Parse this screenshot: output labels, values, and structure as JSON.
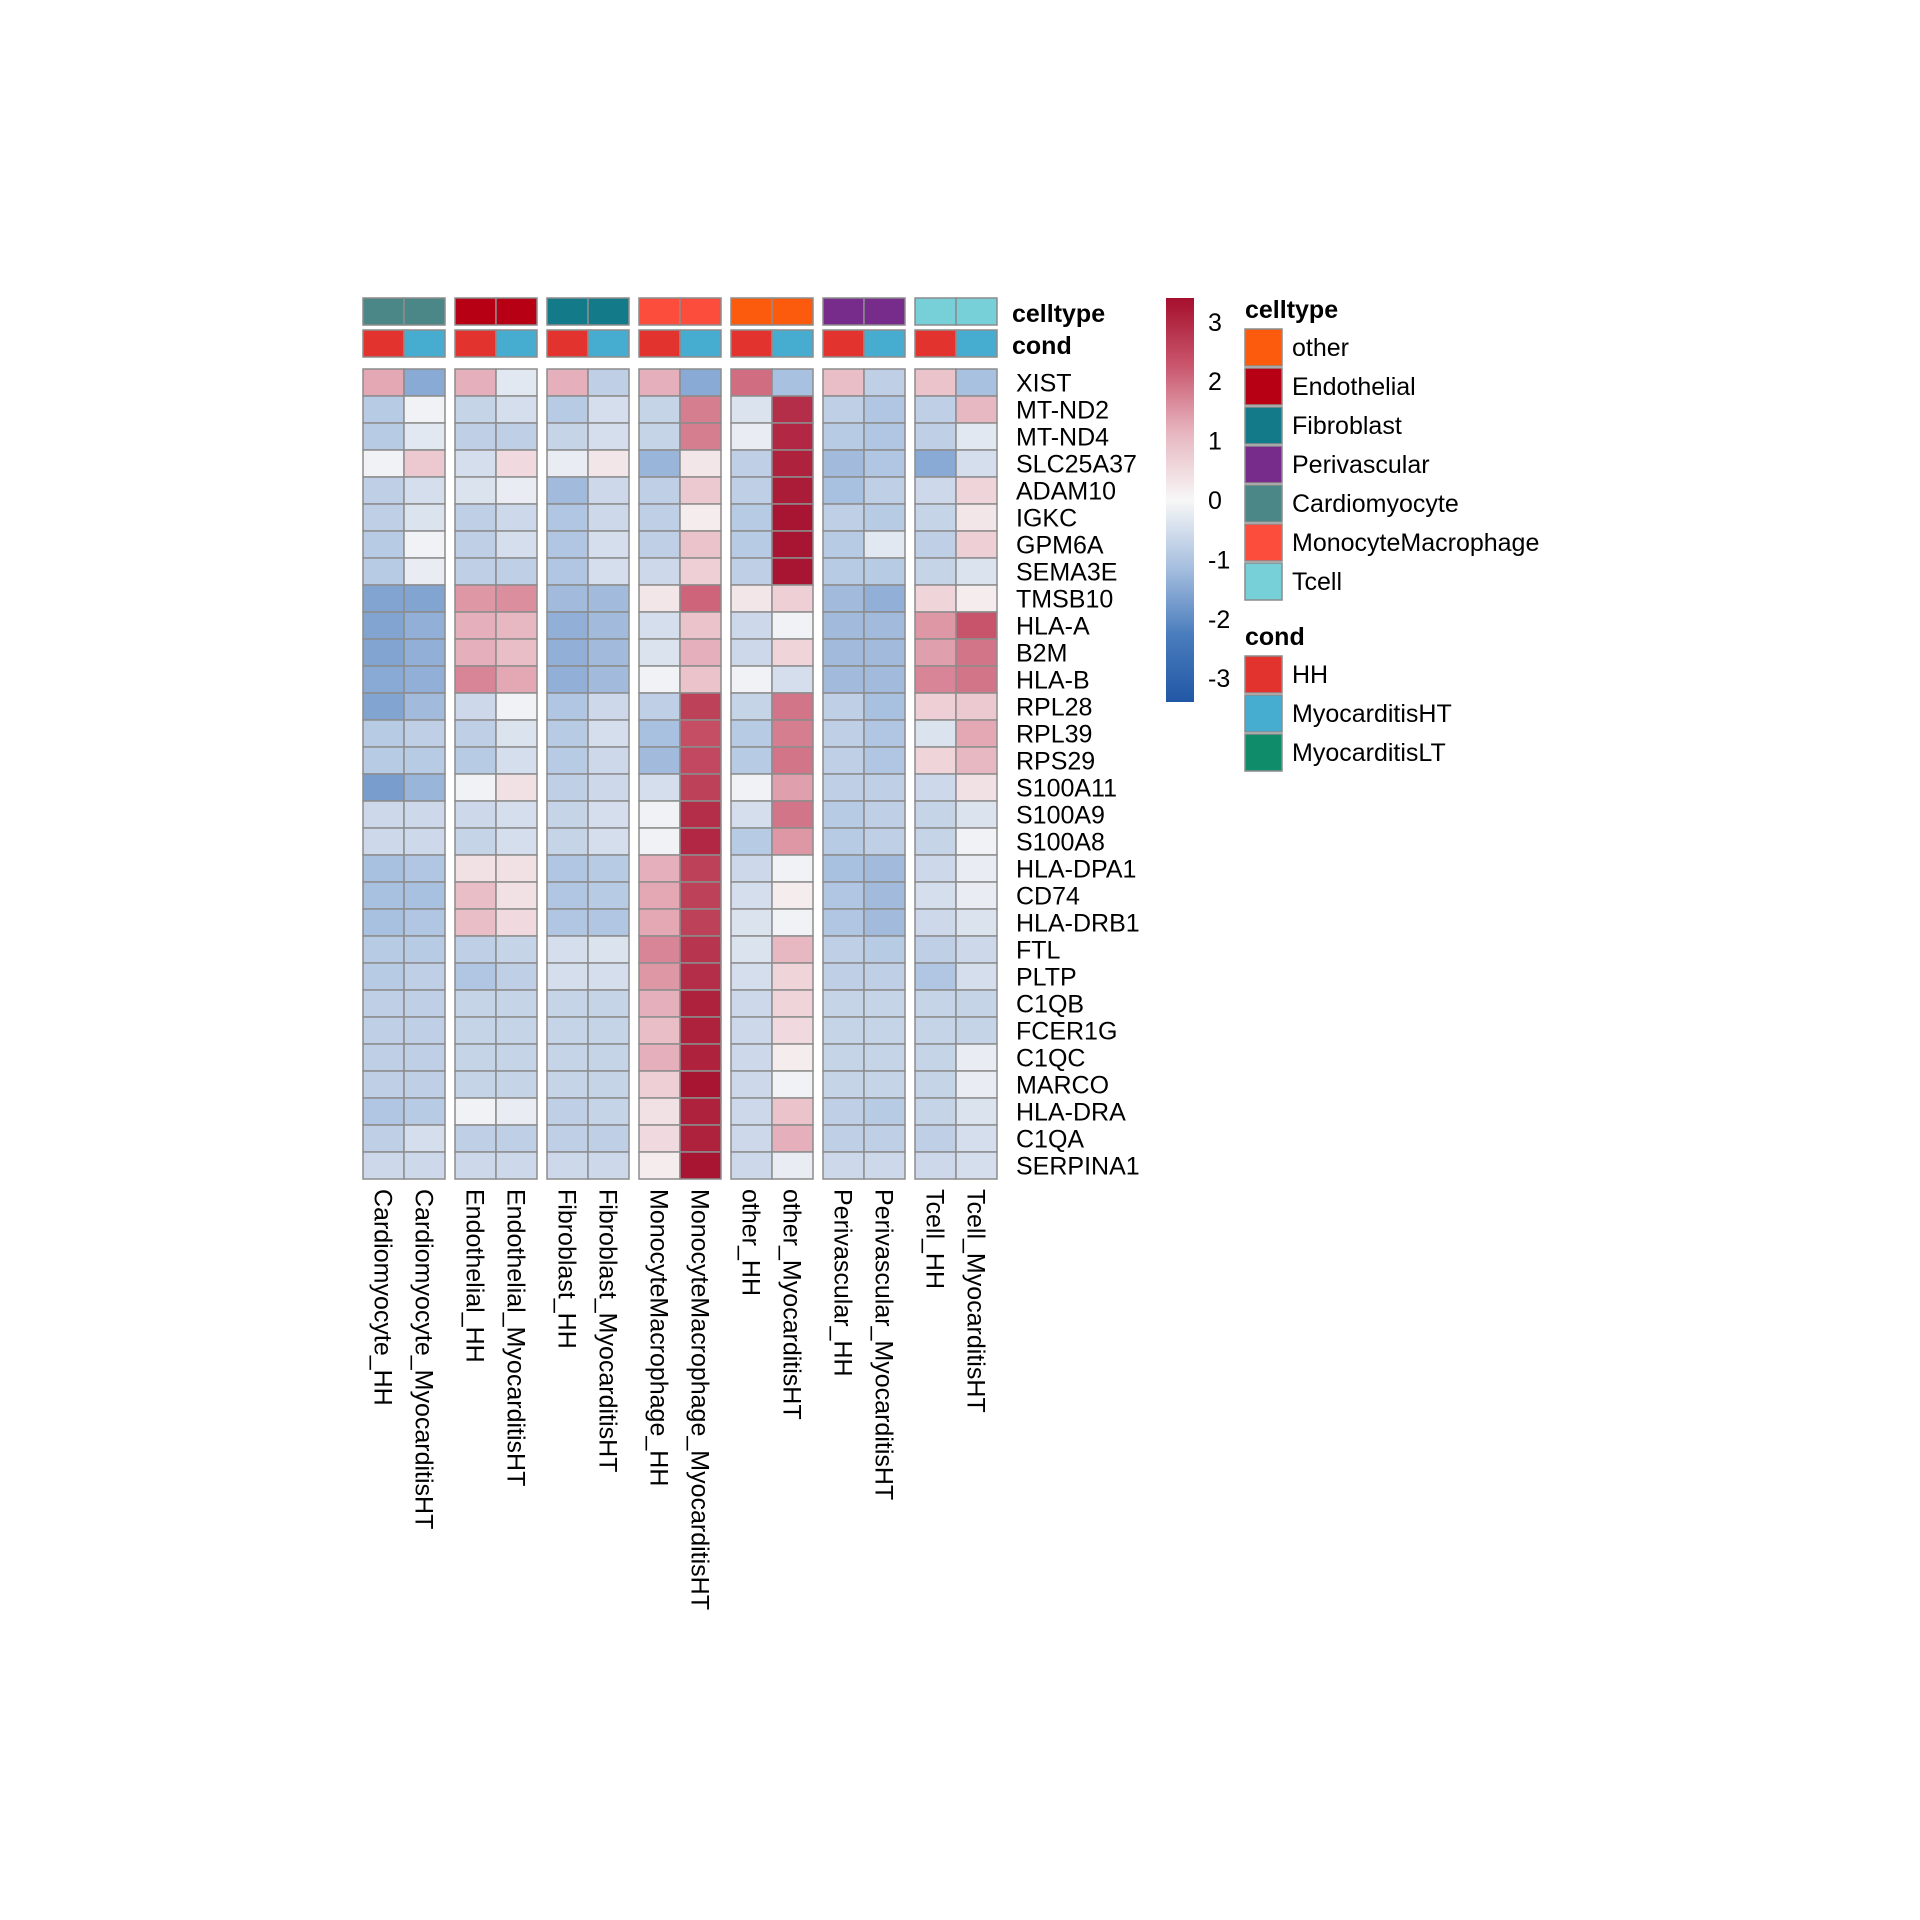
{
  "chart_data": {
    "type": "heatmap",
    "title": "",
    "rows": [
      "XIST",
      "MT-ND2",
      "MT-ND4",
      "SLC25A37",
      "ADAM10",
      "IGKC",
      "GPM6A",
      "SEMA3E",
      "TMSB10",
      "HLA-A",
      "B2M",
      "HLA-B",
      "RPL28",
      "RPL39",
      "RPS29",
      "S100A11",
      "S100A9",
      "S100A8",
      "HLA-DPA1",
      "CD74",
      "HLA-DRB1",
      "FTL",
      "PLTP",
      "C1QB",
      "FCER1G",
      "C1QC",
      "MARCO",
      "HLA-DRA",
      "C1QA",
      "SERPINA1"
    ],
    "columns": [
      "Cardiomyocyte_HH",
      "Cardiomyocyte_MyocarditisHT",
      "Endothelial_HH",
      "Endothelial_MyocarditisHT",
      "Fibroblast_HH",
      "Fibroblast_MyocarditisHT",
      "MonocyteMacrophage_HH",
      "MonocyteMacrophage_MyocarditisHT",
      "other_HH",
      "other_MyocarditisHT",
      "Perivascular_HH",
      "Perivascular_MyocarditisHT",
      "Tcell_HH",
      "Tcell_MyocarditisHT"
    ],
    "column_groups": [
      "Cardiomyocyte",
      "Endothelial",
      "Fibroblast",
      "MonocyteMacrophage",
      "other",
      "Perivascular",
      "Tcell"
    ],
    "annotations": {
      "celltype": [
        "Cardiomyocyte",
        "Cardiomyocyte",
        "Endothelial",
        "Endothelial",
        "Fibroblast",
        "Fibroblast",
        "MonocyteMacrophage",
        "MonocyteMacrophage",
        "other",
        "other",
        "Perivascular",
        "Perivascular",
        "Tcell",
        "Tcell"
      ],
      "cond": [
        "HH",
        "MyocarditisHT",
        "HH",
        "MyocarditisHT",
        "HH",
        "MyocarditisHT",
        "HH",
        "MyocarditisHT",
        "HH",
        "MyocarditisHT",
        "HH",
        "MyocarditisHT",
        "HH",
        "MyocarditisHT"
      ]
    },
    "values": [
      [
        1.3,
        -1.5,
        1.2,
        -0.3,
        1.2,
        -0.8,
        1.2,
        -1.5,
        2.0,
        -1.1,
        1.0,
        -0.8,
        0.9,
        -1.1
      ],
      [
        -0.9,
        -0.1,
        -0.7,
        -0.5,
        -0.9,
        -0.5,
        -0.7,
        1.8,
        -0.4,
        2.9,
        -0.8,
        -1.0,
        -0.8,
        1.1
      ],
      [
        -0.9,
        -0.3,
        -0.8,
        -0.8,
        -0.7,
        -0.5,
        -0.7,
        1.8,
        -0.2,
        3.0,
        -0.9,
        -1.0,
        -0.8,
        -0.3
      ],
      [
        -0.1,
        0.8,
        -0.5,
        0.5,
        -0.2,
        0.3,
        -1.3,
        0.3,
        -0.8,
        3.1,
        -1.2,
        -1.0,
        -1.5,
        -0.5
      ],
      [
        -0.8,
        -0.5,
        -0.4,
        -0.2,
        -1.2,
        -0.6,
        -0.8,
        0.8,
        -0.8,
        3.2,
        -1.1,
        -0.8,
        -0.6,
        0.6
      ],
      [
        -0.8,
        -0.4,
        -0.8,
        -0.6,
        -1.0,
        -0.6,
        -0.8,
        0.2,
        -0.9,
        3.3,
        -0.8,
        -0.9,
        -0.7,
        0.3
      ],
      [
        -0.9,
        -0.1,
        -0.8,
        -0.5,
        -1.0,
        -0.5,
        -0.8,
        0.9,
        -0.9,
        3.3,
        -0.9,
        -0.3,
        -0.8,
        0.7
      ],
      [
        -0.9,
        -0.2,
        -0.8,
        -0.8,
        -1.0,
        -0.5,
        -0.6,
        0.7,
        -0.8,
        3.3,
        -0.9,
        -0.9,
        -0.7,
        -0.4
      ],
      [
        -1.6,
        -1.6,
        1.5,
        1.6,
        -1.2,
        -1.2,
        0.3,
        2.1,
        0.3,
        0.7,
        -1.2,
        -1.4,
        0.6,
        0.2
      ],
      [
        -1.6,
        -1.4,
        1.2,
        1.1,
        -1.4,
        -1.2,
        -0.5,
        0.9,
        -0.6,
        -0.1,
        -1.2,
        -1.2,
        1.5,
        2.3
      ],
      [
        -1.6,
        -1.4,
        1.2,
        1.0,
        -1.4,
        -1.2,
        -0.4,
        1.2,
        -0.6,
        0.6,
        -1.2,
        -1.2,
        1.4,
        1.9
      ],
      [
        -1.5,
        -1.4,
        1.7,
        1.3,
        -1.4,
        -1.2,
        -0.1,
        0.9,
        -0.1,
        -0.5,
        -1.2,
        -1.2,
        1.7,
        1.9
      ],
      [
        -1.6,
        -1.2,
        -0.6,
        -0.1,
        -1.0,
        -0.6,
        -0.8,
        2.6,
        -0.7,
        1.9,
        -0.8,
        -1.1,
        0.7,
        0.8
      ],
      [
        -0.9,
        -0.8,
        -0.8,
        -0.4,
        -0.9,
        -0.5,
        -1.1,
        2.4,
        -0.9,
        1.8,
        -0.8,
        -1.0,
        -0.4,
        1.3
      ],
      [
        -0.9,
        -0.9,
        -0.9,
        -0.5,
        -0.9,
        -0.6,
        -1.2,
        2.5,
        -0.9,
        1.9,
        -0.8,
        -1.0,
        0.6,
        1.1
      ],
      [
        -1.7,
        -1.3,
        -0.1,
        0.4,
        -0.8,
        -0.6,
        -0.5,
        2.6,
        -0.1,
        1.4,
        -0.8,
        -0.8,
        -0.6,
        0.4
      ],
      [
        -0.6,
        -0.6,
        -0.6,
        -0.5,
        -0.7,
        -0.5,
        -0.1,
        2.9,
        -0.5,
        1.9,
        -0.9,
        -0.8,
        -0.7,
        -0.4
      ],
      [
        -0.6,
        -0.6,
        -0.7,
        -0.5,
        -0.7,
        -0.5,
        -0.1,
        3.0,
        -0.9,
        1.5,
        -0.9,
        -0.8,
        -0.7,
        -0.1
      ],
      [
        -1.1,
        -1.0,
        0.4,
        0.4,
        -1.0,
        -0.9,
        1.2,
        2.6,
        -0.6,
        -0.1,
        -1.1,
        -1.2,
        -0.6,
        -0.2
      ],
      [
        -1.1,
        -1.1,
        1.0,
        0.4,
        -1.0,
        -0.9,
        1.3,
        2.6,
        -0.5,
        0.2,
        -1.0,
        -1.2,
        -0.5,
        -0.2
      ],
      [
        -1.1,
        -1.0,
        1.0,
        0.5,
        -1.0,
        -1.0,
        1.3,
        2.6,
        -0.4,
        -0.1,
        -1.0,
        -1.2,
        -0.6,
        -0.4
      ],
      [
        -0.9,
        -0.9,
        -0.8,
        -0.7,
        -0.5,
        -0.4,
        1.7,
        2.8,
        -0.4,
        1.1,
        -0.8,
        -0.9,
        -0.8,
        -0.6
      ],
      [
        -0.9,
        -0.8,
        -1.0,
        -0.8,
        -0.5,
        -0.5,
        1.5,
        2.9,
        -0.5,
        0.6,
        -0.8,
        -0.8,
        -1.0,
        -0.5
      ],
      [
        -0.8,
        -0.8,
        -0.7,
        -0.7,
        -0.7,
        -0.7,
        1.2,
        3.1,
        -0.6,
        0.6,
        -0.7,
        -0.7,
        -0.7,
        -0.7
      ],
      [
        -0.8,
        -0.8,
        -0.7,
        -0.7,
        -0.7,
        -0.7,
        1.0,
        3.1,
        -0.6,
        0.5,
        -0.7,
        -0.7,
        -0.7,
        -0.7
      ],
      [
        -0.8,
        -0.8,
        -0.7,
        -0.7,
        -0.7,
        -0.7,
        1.2,
        3.1,
        -0.6,
        0.2,
        -0.7,
        -0.7,
        -0.7,
        -0.2
      ],
      [
        -0.8,
        -0.8,
        -0.7,
        -0.7,
        -0.7,
        -0.7,
        0.7,
        3.3,
        -0.6,
        -0.1,
        -0.7,
        -0.7,
        -0.7,
        -0.2
      ],
      [
        -1.0,
        -0.9,
        -0.1,
        -0.2,
        -0.8,
        -0.7,
        0.4,
        3.1,
        -0.6,
        0.9,
        -0.8,
        -0.9,
        -0.7,
        -0.4
      ],
      [
        -0.8,
        -0.5,
        -0.8,
        -0.8,
        -0.8,
        -0.8,
        0.5,
        3.1,
        -0.6,
        1.2,
        -0.8,
        -0.8,
        -0.8,
        -0.5
      ],
      [
        -0.6,
        -0.6,
        -0.6,
        -0.6,
        -0.6,
        -0.6,
        0.2,
        3.3,
        -0.6,
        -0.2,
        -0.6,
        -0.6,
        -0.6,
        -0.5
      ]
    ],
    "color_scale": {
      "colors": [
        "#2157a6",
        "#4a7dbd",
        "#a7bfdf",
        "#f7f7f7",
        "#e7b6c0",
        "#c9566d",
        "#a50f2d"
      ],
      "range": [
        -3.4,
        3.4
      ],
      "ticks": [
        "3",
        "2",
        "1",
        "0",
        "-1",
        "-2",
        "-3"
      ],
      "tick_values": [
        3,
        2,
        1,
        0,
        -1,
        -2,
        -3
      ]
    },
    "legends": {
      "celltype": {
        "title": "celltype",
        "items": [
          {
            "label": "other",
            "color": "#fc5a0d"
          },
          {
            "label": "Endothelial",
            "color": "#b80014"
          },
          {
            "label": "Fibroblast",
            "color": "#137a8a"
          },
          {
            "label": "Perivascular",
            "color": "#772b8b"
          },
          {
            "label": "Cardiomyocyte",
            "color": "#4c8787"
          },
          {
            "label": "MonocyteMacrophage",
            "color": "#fc4d3c"
          },
          {
            "label": "Tcell",
            "color": "#77cfd7"
          }
        ]
      },
      "cond": {
        "title": "cond",
        "items": [
          {
            "label": "HH",
            "color": "#e3332f"
          },
          {
            "label": "MyocarditisHT",
            "color": "#46acd0"
          },
          {
            "label": "MyocarditisLT",
            "color": "#0f8c6a"
          }
        ]
      }
    },
    "annotation_titles": {
      "celltype": "celltype",
      "cond": "cond"
    }
  }
}
